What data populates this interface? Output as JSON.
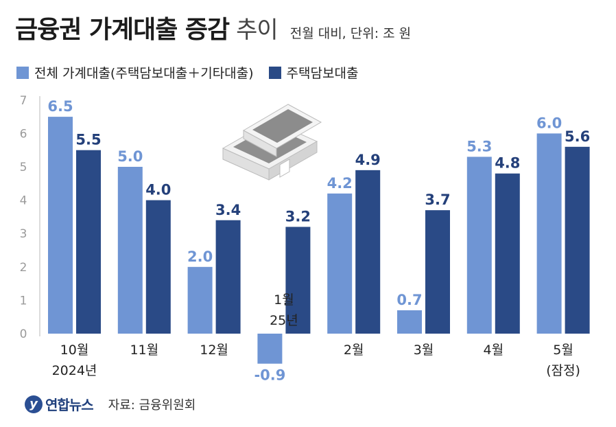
{
  "header": {
    "title_bold": "금융권 가계대출 증감",
    "title_light": "추이",
    "subtitle": "전월 대비, 단위: 조 원"
  },
  "legend": [
    {
      "label": "전체 가계대출(주택담보대출＋기타대출)",
      "color": "#6f95d4"
    },
    {
      "label": "주택담보대출",
      "color": "#2a4a86"
    }
  ],
  "footer": {
    "logo_mark": "y",
    "logo_text": "연합뉴스",
    "source": "자료: 금융위원회"
  },
  "chart_data": {
    "type": "bar",
    "categories": [
      "10월 2024년",
      "11월",
      "12월",
      "1월 25년",
      "2월",
      "3월",
      "4월",
      "5월 (잠정)"
    ],
    "category_lines": [
      [
        "10월",
        "2024년"
      ],
      [
        "11월"
      ],
      [
        "12월"
      ],
      [
        "1월",
        "25년"
      ],
      [
        "2월"
      ],
      [
        "3월"
      ],
      [
        "4월"
      ],
      [
        "5월",
        "(잠정)"
      ]
    ],
    "series": [
      {
        "name": "전체 가계대출(주택담보대출＋기타대출)",
        "color": "#6f95d4",
        "label_color": "#6f95d4",
        "values": [
          6.5,
          5.0,
          2.0,
          -0.9,
          4.2,
          0.7,
          5.3,
          6.0
        ]
      },
      {
        "name": "주택담보대출",
        "color": "#2a4a86",
        "label_color": "#24407a",
        "values": [
          5.5,
          4.0,
          3.4,
          3.2,
          4.9,
          3.7,
          4.8,
          5.6
        ]
      }
    ],
    "y_ticks": [
      0,
      1,
      2,
      3,
      4,
      5,
      6,
      7
    ],
    "ylim": [
      -1,
      7
    ],
    "grid": false,
    "title": "금융권 가계대출 증감 추이",
    "xlabel": "",
    "ylabel": ""
  }
}
